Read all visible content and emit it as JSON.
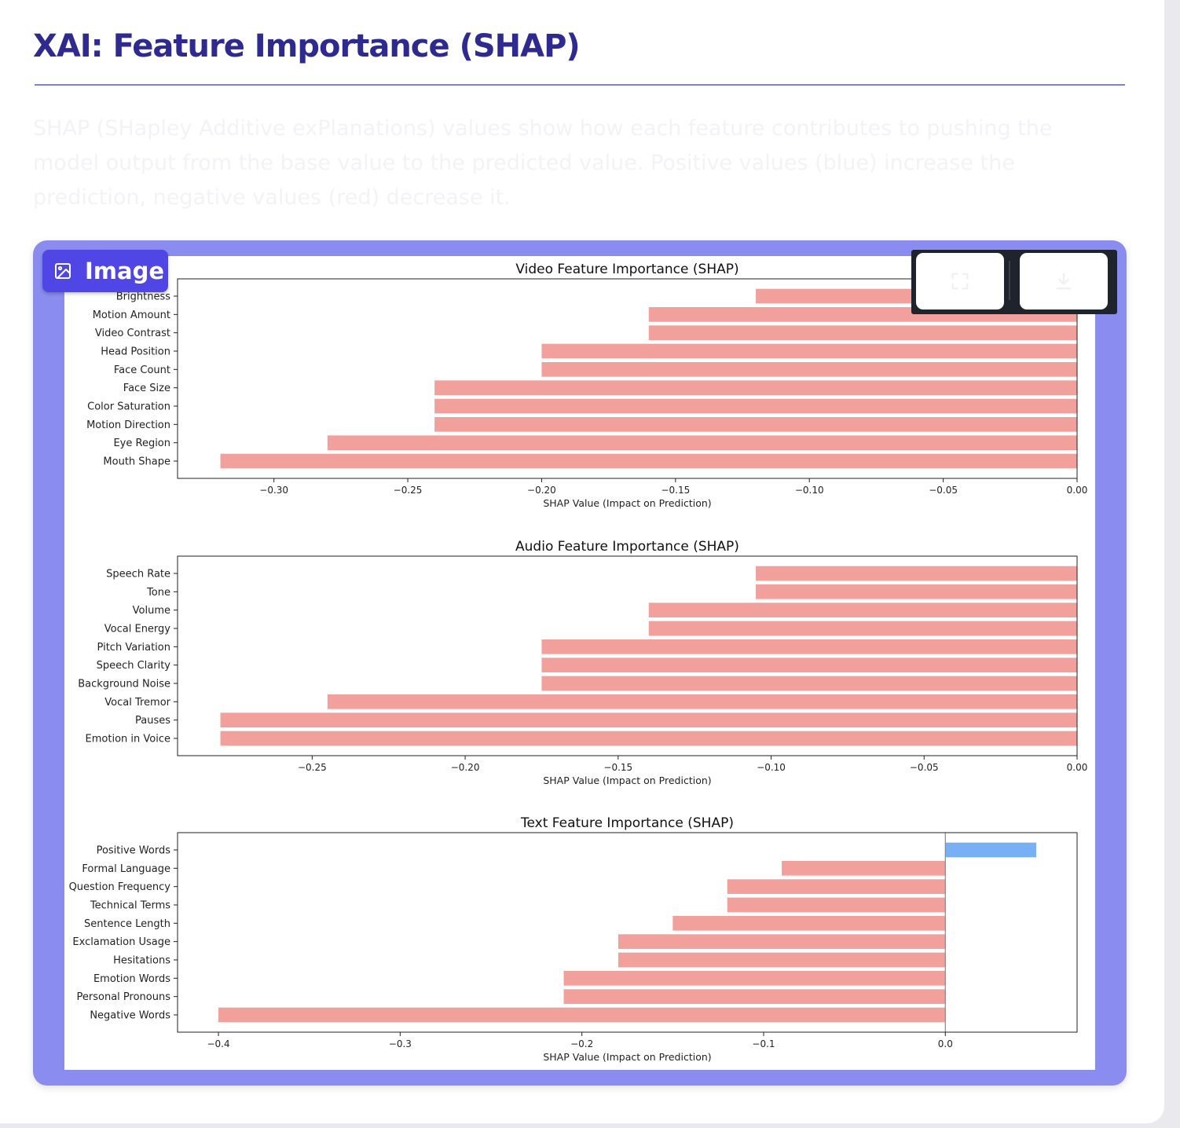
{
  "page": {
    "title": "XAI: Feature Importance (SHAP)",
    "description": "SHAP (SHapley Additive exPlanations) values show how each feature contributes to pushing the model output from the base value to the predicted value. Positive values (blue) increase the prediction, negative values (red) decrease it."
  },
  "image_block": {
    "badge_label": "Image",
    "badge_icon": "image-icon",
    "toolbar": [
      {
        "name": "fullscreen-button",
        "icon": "fullscreen-icon"
      },
      {
        "name": "download-button",
        "icon": "download-icon"
      }
    ]
  },
  "colors": {
    "title": "#2e2a8f",
    "accent": "#4f46e5",
    "frame": "#8a8cf0",
    "negative_bar": "#f1a09b",
    "positive_bar": "#78b0f6"
  },
  "chart_data": [
    {
      "type": "bar",
      "orientation": "horizontal",
      "title": "Video Feature Importance (SHAP)",
      "xlabel": "SHAP Value (Impact on Prediction)",
      "ylabel": "",
      "categories": [
        "Brightness",
        "Motion Amount",
        "Video Contrast",
        "Head Position",
        "Face Count",
        "Face Size",
        "Color Saturation",
        "Motion Direction",
        "Eye Region",
        "Mouth Shape"
      ],
      "values": [
        -0.12,
        -0.16,
        -0.16,
        -0.2,
        -0.2,
        -0.24,
        -0.24,
        -0.24,
        -0.28,
        -0.32
      ],
      "xlim": [
        -0.336,
        0.0
      ],
      "xticks": [
        -0.3,
        -0.25,
        -0.2,
        -0.15,
        -0.1,
        -0.05,
        0.0
      ],
      "xtick_labels": [
        "−0.30",
        "−0.25",
        "−0.20",
        "−0.15",
        "−0.10",
        "−0.05",
        "0.00"
      ],
      "zero_line": false,
      "grid": false
    },
    {
      "type": "bar",
      "orientation": "horizontal",
      "title": "Audio Feature Importance (SHAP)",
      "xlabel": "SHAP Value (Impact on Prediction)",
      "ylabel": "",
      "categories": [
        "Speech Rate",
        "Tone",
        "Volume",
        "Vocal Energy",
        "Pitch Variation",
        "Speech Clarity",
        "Background Noise",
        "Vocal Tremor",
        "Pauses",
        "Emotion in Voice"
      ],
      "values": [
        -0.105,
        -0.105,
        -0.14,
        -0.14,
        -0.175,
        -0.175,
        -0.175,
        -0.245,
        -0.28,
        -0.28
      ],
      "xlim": [
        -0.294,
        0.0
      ],
      "xticks": [
        -0.25,
        -0.2,
        -0.15,
        -0.1,
        -0.05,
        0.0
      ],
      "xtick_labels": [
        "−0.25",
        "−0.20",
        "−0.15",
        "−0.10",
        "−0.05",
        "0.00"
      ],
      "zero_line": false,
      "grid": false
    },
    {
      "type": "bar",
      "orientation": "horizontal",
      "title": "Text Feature Importance (SHAP)",
      "xlabel": "SHAP Value (Impact on Prediction)",
      "ylabel": "",
      "categories": [
        "Positive Words",
        "Formal Language",
        "Question Frequency",
        "Technical Terms",
        "Sentence Length",
        "Exclamation Usage",
        "Hesitations",
        "Emotion Words",
        "Personal Pronouns",
        "Negative Words"
      ],
      "values": [
        0.05,
        -0.09,
        -0.12,
        -0.12,
        -0.15,
        -0.18,
        -0.18,
        -0.21,
        -0.21,
        -0.4
      ],
      "xlim": [
        -0.4225,
        0.0725
      ],
      "xticks": [
        -0.4,
        -0.3,
        -0.2,
        -0.1,
        0.0
      ],
      "xtick_labels": [
        "−0.4",
        "−0.3",
        "−0.2",
        "−0.1",
        "0.0"
      ],
      "zero_line": true,
      "grid": false
    }
  ]
}
